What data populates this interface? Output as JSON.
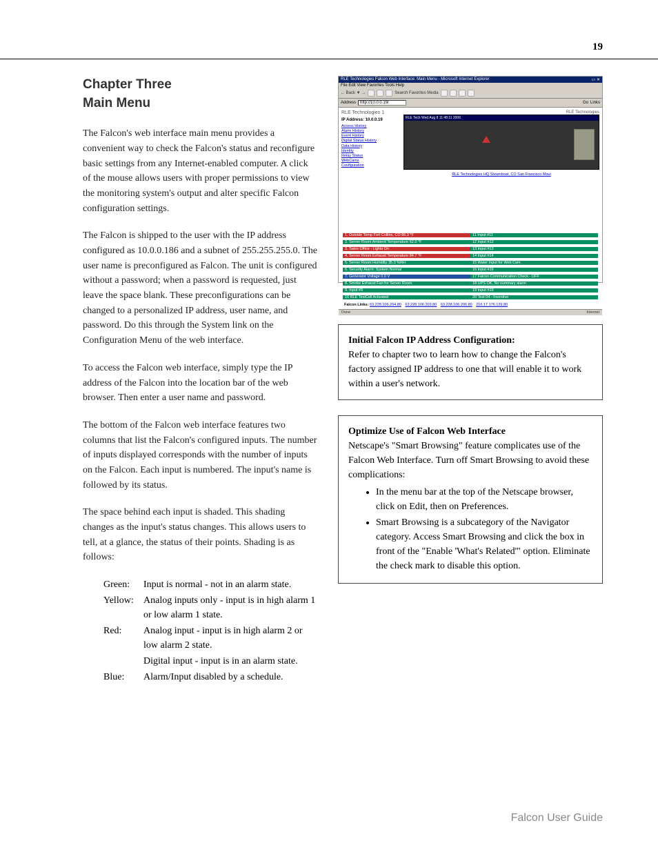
{
  "page_number": "19",
  "chapter_title_line1": "Chapter Three",
  "chapter_title_line2": "Main Menu",
  "paragraphs": {
    "p1": "The Falcon's web interface main menu provides a convenient way to check the Falcon's status and reconfigure basic settings from any Internet-enabled computer.  A click of the mouse allows users with proper permissions to view the monitoring system's output and alter specific Falcon configuration settings.",
    "p2": "The Falcon is shipped to the user with the IP address configured as 10.0.0.186 and a subnet of 255.255.255.0.  The user name is preconfigured as Falcon.  The unit is configured without a password; when a password is requested, just leave the space blank.  These preconfigurations can be changed to a personalized IP address, user name, and password.  Do this through the System link on the Configuration Menu of the web interface.",
    "p3": "To access the Falcon web interface, simply type the IP address of the Falcon into the location bar of the web browser.  Then enter a user name and password.",
    "p4": "The bottom of the Falcon web interface features two columns that list the Falcon's configured inputs.  The number of inputs displayed corresponds with the number of inputs on the Falcon.  Each input is numbered.  The input's name is followed by its status.",
    "p5": "The space behind each input is shaded.  This shading changes as the input's status changes.  This allows users to tell, at a glance, the status of their points.  Shading is as follows:"
  },
  "shading": [
    {
      "label": "Green:",
      "desc": "Input is normal - not in an alarm state."
    },
    {
      "label": "Yellow:",
      "desc": "Analog inputs only - input is in high alarm 1 or low alarm 1 state."
    },
    {
      "label": "Red:",
      "desc": "Analog input - input is in high alarm 2 or low alarm 2 state."
    },
    {
      "label": "",
      "desc": "Digital input - input is in an alarm state."
    },
    {
      "label": "Blue:",
      "desc": "Alarm/Input disabled by a schedule."
    }
  ],
  "screenshot": {
    "titlebar": "RLE Technologies Falcon Web Interface: Main Menu - Microsoft Internet Explorer",
    "menubar": "File   Edit   View   Favorites   Tools   Help",
    "toolbar_text": "Search   Favorites   Media",
    "address_label": "Address",
    "address_value": "http://10.0.0.19/",
    "go_label": "Go",
    "links_label": "Links",
    "brand": "RLE Technologies 1",
    "ip_label": "IP Address:",
    "ip_value": "10.0.0.19",
    "side_links": [
      "Access History",
      "Alarm History",
      "Event History",
      "Digital Status History",
      "Data History",
      "Identity",
      "Relay Status",
      "WebCams",
      "Configuration"
    ],
    "corp_label": "RLE Technologies",
    "cam_bar": "RLE Tech  Wed Aug  8  11:48:11  2006",
    "loc_links": "RLE Technologies   HQ   Steamboat, CO   San Francisco   Maui",
    "rows": [
      {
        "l": "1. Outside Temp Fort Collins, CO 86.3 °F",
        "lc": "#c83030",
        "r": "11 Input #11",
        "rc": "#089060"
      },
      {
        "l": "2. Server Room Ambient Temperature 62.0 °F",
        "lc": "#089060",
        "r": "12 Input #12",
        "rc": "#089060"
      },
      {
        "l": "3. Sales Office - Lights On",
        "lc": "#c83030",
        "r": "13 Input #13",
        "rc": "#089060"
      },
      {
        "l": "4. Server Room Exhaust Temperature 84.7 °F",
        "lc": "#c83030",
        "r": "14 Input #14",
        "rc": "#089060"
      },
      {
        "l": "5. Server Room Humidity 35.0 %RH",
        "lc": "#089060",
        "r": "15 Water Input for Web Cam",
        "rc": "#089060"
      },
      {
        "l": "6. Security Alarm: System Normal",
        "lc": "#089060",
        "r": "16 Input #16",
        "rc": "#089060"
      },
      {
        "l": "7. Generator Voltage 0.0 V",
        "lc": "#2050a0",
        "r": "17 Falcon Communication Check - OFF",
        "rc": "#089060"
      },
      {
        "l": "8. Smoke Exhaust Fan for Server Room",
        "lc": "#089060",
        "r": "18 UPS OK, No summary alarm",
        "rc": "#089060"
      },
      {
        "l": "9. Input #9",
        "lc": "#089060",
        "r": "19 Input #19",
        "rc": "#089060"
      },
      {
        "l": "10 RLE TestCell Activated",
        "lc": "#089060",
        "r": "20 Test 04 - Inventive",
        "rc": "#089060"
      }
    ],
    "footer_label": "Falcon Links:",
    "footer_links": [
      "63.228.106.204.80",
      "63.228.106.203.80",
      "63.228.106.206.80",
      "216.17.176.129.80"
    ],
    "status_left": "Done",
    "status_right": "Internet"
  },
  "sidebar1": {
    "title": "Initial Falcon IP Address Configuration:",
    "body": "Refer to chapter two to learn how to change the Falcon's factory assigned IP address to one that will enable it to work within a user's network."
  },
  "sidebar2": {
    "title": "Optimize Use of Falcon Web Interface",
    "body": "Netscape's \"Smart Browsing\" feature complicates use of the Falcon Web Interface.  Turn off Smart Browsing to avoid these complications:",
    "bullets": [
      "In the menu bar at the top of the Netscape browser, click on Edit, then on Preferences.",
      "Smart Browsing is a subcategory of the Navigator category.  Access Smart Browsing and click the box in front of the \"Enable 'What's Related'\" option.  Eliminate the check mark to disable this option."
    ]
  },
  "footer_text": "Falcon User Guide",
  "colors": {
    "row_green": "#089060",
    "row_red": "#c83030",
    "row_blue": "#2050a0"
  }
}
